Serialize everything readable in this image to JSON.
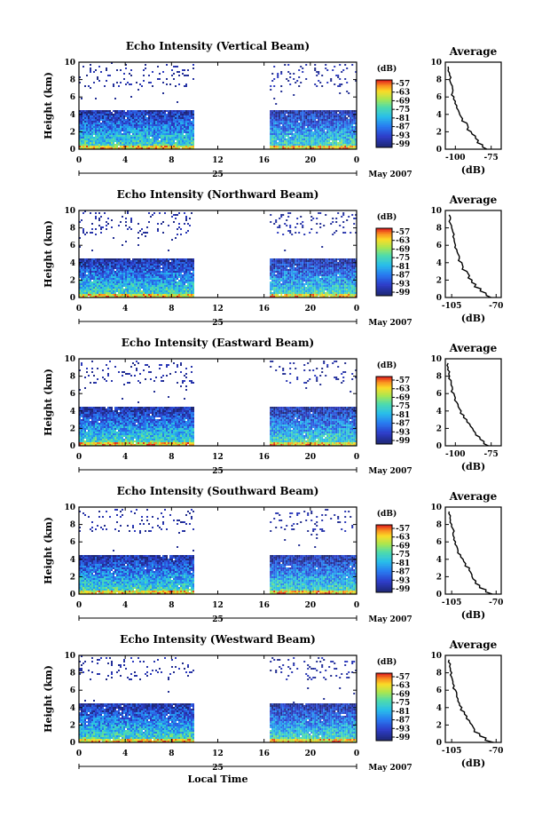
{
  "chart_data": [
    {
      "type": "heatmap",
      "title": "Echo Intensity (Vertical Beam)",
      "ylabel": "Height (km)",
      "xticks": [
        "0",
        "4",
        "8",
        "12",
        "16",
        "20",
        "0"
      ],
      "yticks": [
        "0",
        "2",
        "4",
        "6",
        "8",
        "10"
      ],
      "xlim": [
        0,
        24
      ],
      "ylim": [
        0,
        10
      ],
      "date_label": "25",
      "month_label": "May 2007",
      "data_segments": [
        [
          0,
          10
        ],
        [
          16.5,
          24
        ]
      ],
      "colorbar": {
        "unit": "(dB)",
        "ticks": [
          "-57",
          "-63",
          "-69",
          "-75",
          "-81",
          "-87",
          "-93",
          "-99"
        ]
      },
      "average": {
        "title": "Average",
        "xlabel": "(dB)",
        "xticks": [
          "-100",
          "-75"
        ],
        "xlim": [
          -107,
          -68
        ],
        "yticks": [
          "0",
          "2",
          "4",
          "6",
          "8",
          "10"
        ],
        "profile": [
          [
            0,
            -78
          ],
          [
            0.5,
            -81
          ],
          [
            1,
            -84
          ],
          [
            1.5,
            -86
          ],
          [
            2,
            -89
          ],
          [
            2.5,
            -91
          ],
          [
            3,
            -92
          ],
          [
            3.5,
            -95
          ],
          [
            4,
            -97
          ],
          [
            4.5,
            -98
          ],
          [
            5,
            -99
          ],
          [
            5.5,
            -100
          ],
          [
            6,
            -101
          ],
          [
            6.5,
            -102
          ],
          [
            7,
            -102
          ],
          [
            7.5,
            -103
          ],
          [
            8,
            -104
          ],
          [
            8.5,
            -104
          ],
          [
            9,
            -105
          ],
          [
            9.5,
            -105
          ]
        ]
      }
    },
    {
      "type": "heatmap",
      "title": "Echo Intensity (Northward Beam)",
      "ylabel": "Height (km)",
      "xticks": [
        "0",
        "4",
        "8",
        "12",
        "16",
        "20",
        "0"
      ],
      "yticks": [
        "0",
        "2",
        "4",
        "6",
        "8",
        "10"
      ],
      "xlim": [
        0,
        24
      ],
      "ylim": [
        0,
        10
      ],
      "date_label": "25",
      "month_label": "May 2007",
      "data_segments": [
        [
          0,
          10
        ],
        [
          16.5,
          24
        ]
      ],
      "colorbar": {
        "unit": "(dB)",
        "ticks": [
          "-57",
          "-63",
          "-69",
          "-75",
          "-81",
          "-87",
          "-93",
          "-99"
        ]
      },
      "average": {
        "title": "Average",
        "xlabel": "(dB)",
        "xticks": [
          "-105",
          "-70"
        ],
        "xlim": [
          -110,
          -66
        ],
        "yticks": [
          "0",
          "2",
          "4",
          "6",
          "8",
          "10"
        ],
        "profile": [
          [
            0,
            -74
          ],
          [
            0.5,
            -78
          ],
          [
            1,
            -82
          ],
          [
            1.5,
            -86
          ],
          [
            2,
            -89
          ],
          [
            2.5,
            -91
          ],
          [
            3,
            -93
          ],
          [
            3.5,
            -96
          ],
          [
            4,
            -97
          ],
          [
            4.5,
            -99
          ],
          [
            5,
            -100
          ],
          [
            5.5,
            -101
          ],
          [
            6,
            -102
          ],
          [
            6.5,
            -103
          ],
          [
            7,
            -104
          ],
          [
            7.5,
            -104
          ],
          [
            8,
            -105
          ],
          [
            8.5,
            -106
          ],
          [
            9,
            -106
          ],
          [
            9.5,
            -107
          ]
        ]
      }
    },
    {
      "type": "heatmap",
      "title": "Echo Intensity (Eastward Beam)",
      "ylabel": "Height (km)",
      "xticks": [
        "0",
        "4",
        "8",
        "12",
        "16",
        "20",
        "0"
      ],
      "yticks": [
        "0",
        "2",
        "4",
        "6",
        "8",
        "10"
      ],
      "xlim": [
        0,
        24
      ],
      "ylim": [
        0,
        10
      ],
      "date_label": "25",
      "month_label": "May 2007",
      "data_segments": [
        [
          0,
          10
        ],
        [
          16.5,
          24
        ]
      ],
      "colorbar": {
        "unit": "(dB)",
        "ticks": [
          "-57",
          "-63",
          "-69",
          "-75",
          "-81",
          "-87",
          "-93",
          "-99"
        ]
      },
      "average": {
        "title": "Average",
        "xlabel": "(dB)",
        "xticks": [
          "-100",
          "-75"
        ],
        "xlim": [
          -107,
          -68
        ],
        "yticks": [
          "0",
          "2",
          "4",
          "6",
          "8",
          "10"
        ],
        "profile": [
          [
            0,
            -77
          ],
          [
            0.5,
            -80
          ],
          [
            1,
            -83
          ],
          [
            1.5,
            -86
          ],
          [
            2,
            -88
          ],
          [
            2.5,
            -90
          ],
          [
            3,
            -92
          ],
          [
            3.5,
            -94
          ],
          [
            4,
            -96
          ],
          [
            4.5,
            -98
          ],
          [
            5,
            -99
          ],
          [
            5.5,
            -100
          ],
          [
            6,
            -101
          ],
          [
            6.5,
            -102
          ],
          [
            7,
            -103
          ],
          [
            7.5,
            -103
          ],
          [
            8,
            -104
          ],
          [
            8.5,
            -104
          ],
          [
            9,
            -105
          ],
          [
            9.5,
            -105
          ]
        ]
      }
    },
    {
      "type": "heatmap",
      "title": "Echo Intensity (Southward Beam)",
      "ylabel": "Height (km)",
      "xticks": [
        "0",
        "4",
        "8",
        "12",
        "16",
        "20",
        "0"
      ],
      "yticks": [
        "0",
        "2",
        "4",
        "6",
        "8",
        "10"
      ],
      "xlim": [
        0,
        24
      ],
      "ylim": [
        0,
        10
      ],
      "date_label": "25",
      "month_label": "May 2007",
      "data_segments": [
        [
          0,
          10
        ],
        [
          16.5,
          24
        ]
      ],
      "colorbar": {
        "unit": "(dB)",
        "ticks": [
          "-57",
          "-63",
          "-69",
          "-75",
          "-81",
          "-87",
          "-93",
          "-99"
        ]
      },
      "average": {
        "title": "Average",
        "xlabel": "(dB)",
        "xticks": [
          "-105",
          "-70"
        ],
        "xlim": [
          -110,
          -66
        ],
        "yticks": [
          "0",
          "2",
          "4",
          "6",
          "8",
          "10"
        ],
        "profile": [
          [
            0,
            -73
          ],
          [
            0.5,
            -78
          ],
          [
            1,
            -83
          ],
          [
            1.5,
            -86
          ],
          [
            2,
            -89
          ],
          [
            2.5,
            -90
          ],
          [
            3,
            -91
          ],
          [
            3.5,
            -94
          ],
          [
            4,
            -96
          ],
          [
            4.5,
            -98
          ],
          [
            5,
            -100
          ],
          [
            5.5,
            -101
          ],
          [
            6,
            -102
          ],
          [
            6.5,
            -103
          ],
          [
            7,
            -104
          ],
          [
            7.5,
            -104
          ],
          [
            8,
            -105
          ],
          [
            8.5,
            -106
          ],
          [
            9,
            -106
          ],
          [
            9.5,
            -107
          ]
        ]
      }
    },
    {
      "type": "heatmap",
      "title": "Echo Intensity (Westward Beam)",
      "ylabel": "Height (km)",
      "xlabel": "Local Time",
      "xticks": [
        "0",
        "4",
        "8",
        "12",
        "16",
        "20",
        "0"
      ],
      "yticks": [
        "0",
        "2",
        "4",
        "6",
        "8",
        "10"
      ],
      "xlim": [
        0,
        24
      ],
      "ylim": [
        0,
        10
      ],
      "date_label": "25",
      "month_label": "May 2007",
      "data_segments": [
        [
          0,
          10
        ],
        [
          16.5,
          24
        ]
      ],
      "colorbar": {
        "unit": "(dB)",
        "ticks": [
          "-57",
          "-63",
          "-69",
          "-75",
          "-81",
          "-87",
          "-93",
          "-99"
        ]
      },
      "average": {
        "title": "Average",
        "xlabel": "(dB)",
        "xticks": [
          "-105",
          "-70"
        ],
        "xlim": [
          -110,
          -66
        ],
        "yticks": [
          "0",
          "2",
          "4",
          "6",
          "8",
          "10"
        ],
        "profile": [
          [
            0,
            -72
          ],
          [
            0.5,
            -78
          ],
          [
            1,
            -83
          ],
          [
            1.5,
            -87
          ],
          [
            2,
            -89
          ],
          [
            2.5,
            -91
          ],
          [
            3,
            -93
          ],
          [
            3.5,
            -95
          ],
          [
            4,
            -97
          ],
          [
            4.5,
            -99
          ],
          [
            5,
            -100
          ],
          [
            5.5,
            -101
          ],
          [
            6,
            -102
          ],
          [
            6.5,
            -103
          ],
          [
            7,
            -104
          ],
          [
            7.5,
            -105
          ],
          [
            8,
            -105
          ],
          [
            8.5,
            -106
          ],
          [
            9,
            -106
          ],
          [
            9.5,
            -107
          ]
        ]
      }
    }
  ]
}
